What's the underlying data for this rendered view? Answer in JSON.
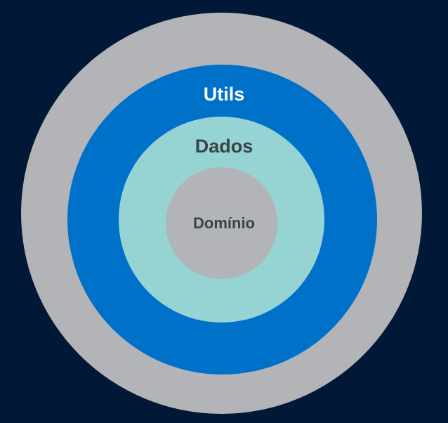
{
  "diagram": {
    "layers": [
      {
        "id": "outer",
        "label": "",
        "color": "#b2b4b8",
        "text_color": "#ffffff"
      },
      {
        "id": "utils",
        "label": "Utils",
        "color": "#0071c9",
        "text_color": "#ffffff"
      },
      {
        "id": "dados",
        "label": "Dados",
        "color": "#96d3d3",
        "text_color": "#3c4246"
      },
      {
        "id": "dominio",
        "label": "Domínio",
        "color": "#b2b4b8",
        "text_color": "#3c4246"
      }
    ],
    "background": "#011836"
  }
}
